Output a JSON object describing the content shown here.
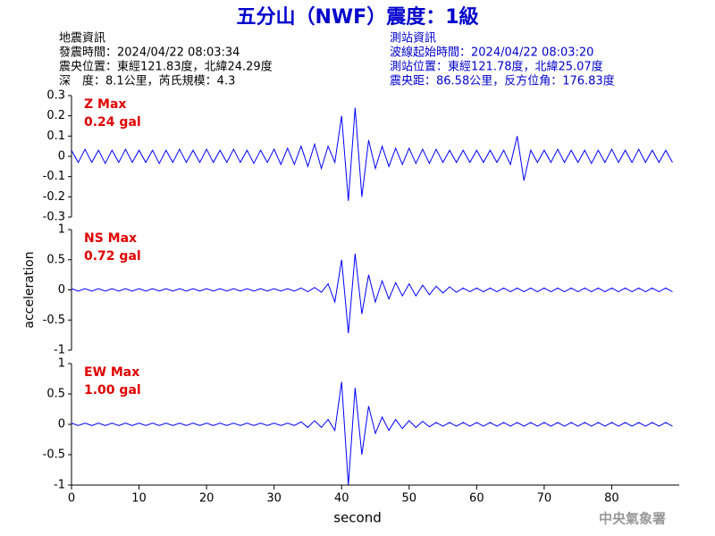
{
  "title": "五分山（NWF）震度：1級",
  "left_info": [
    "地震資訊",
    "發震時間：2024/04/22 08:03:34",
    "震央位置：東經121.83度，北緯24.29度",
    "深　度：8.1公里，芮氏規模：4.3"
  ],
  "right_info": [
    "測站資訊",
    "波線起始時間：2024/04/22 08:03:20",
    "測站位置：東經121.78度，北緯25.07度",
    "震央距：86.58公里，反方位角：176.83度"
  ],
  "footer": "中央氣象署",
  "chart_data": [
    {
      "type": "line",
      "annotation": "Z Max",
      "max_label": "0.24 gal",
      "color": "#0000ff",
      "xlim": [
        0,
        90
      ],
      "ylim": [
        -0.3,
        0.3
      ],
      "yticks": [
        -0.3,
        -0.2,
        -0.1,
        0,
        0.1,
        0.2,
        0.3
      ],
      "x": [
        0,
        1,
        2,
        3,
        4,
        5,
        6,
        7,
        8,
        9,
        10,
        11,
        12,
        13,
        14,
        15,
        16,
        17,
        18,
        19,
        20,
        21,
        22,
        23,
        24,
        25,
        26,
        27,
        28,
        29,
        30,
        31,
        32,
        33,
        34,
        35,
        36,
        37,
        38,
        39,
        40,
        41,
        42,
        43,
        44,
        45,
        46,
        47,
        48,
        49,
        50,
        51,
        52,
        53,
        54,
        55,
        56,
        57,
        58,
        59,
        60,
        61,
        62,
        63,
        64,
        65,
        66,
        67,
        68,
        69,
        70,
        71,
        72,
        73,
        74,
        75,
        76,
        77,
        78,
        79,
        80,
        81,
        82,
        83,
        84,
        85,
        86,
        87,
        88,
        89
      ],
      "values": [
        0.03,
        -0.03,
        0.035,
        -0.03,
        0.03,
        -0.035,
        0.03,
        -0.03,
        0.035,
        -0.03,
        0.03,
        -0.03,
        0.03,
        -0.035,
        0.03,
        -0.03,
        0.035,
        -0.03,
        0.03,
        -0.03,
        0.035,
        -0.03,
        0.03,
        -0.03,
        0.035,
        -0.03,
        0.03,
        -0.035,
        0.03,
        -0.03,
        0.035,
        -0.04,
        0.04,
        -0.04,
        0.05,
        -0.05,
        0.06,
        -0.06,
        0.05,
        -0.03,
        0.2,
        -0.22,
        0.24,
        -0.2,
        0.08,
        -0.06,
        0.05,
        -0.05,
        0.04,
        -0.04,
        0.04,
        -0.035,
        0.035,
        -0.035,
        0.035,
        -0.03,
        0.03,
        -0.03,
        0.03,
        -0.03,
        0.03,
        -0.03,
        0.03,
        -0.03,
        0.03,
        -0.04,
        0.1,
        -0.12,
        0.03,
        -0.03,
        0.03,
        -0.03,
        0.035,
        -0.03,
        0.03,
        -0.03,
        0.03,
        -0.035,
        0.03,
        -0.03,
        0.035,
        -0.03,
        0.03,
        -0.03,
        0.035,
        -0.03,
        0.03,
        -0.03,
        0.03,
        -0.03
      ]
    },
    {
      "type": "line",
      "annotation": "NS Max",
      "max_label": "0.72 gal",
      "color": "#0000ff",
      "ylabel": "acceleration",
      "xlim": [
        0,
        90
      ],
      "ylim": [
        -1,
        1
      ],
      "yticks": [
        -1,
        -0.5,
        0,
        0.5,
        1
      ],
      "x": [
        0,
        1,
        2,
        3,
        4,
        5,
        6,
        7,
        8,
        9,
        10,
        11,
        12,
        13,
        14,
        15,
        16,
        17,
        18,
        19,
        20,
        21,
        22,
        23,
        24,
        25,
        26,
        27,
        28,
        29,
        30,
        31,
        32,
        33,
        34,
        35,
        36,
        37,
        38,
        39,
        40,
        41,
        42,
        43,
        44,
        45,
        46,
        47,
        48,
        49,
        50,
        51,
        52,
        53,
        54,
        55,
        56,
        57,
        58,
        59,
        60,
        61,
        62,
        63,
        64,
        65,
        66,
        67,
        68,
        69,
        70,
        71,
        72,
        73,
        74,
        75,
        76,
        77,
        78,
        79,
        80,
        81,
        82,
        83,
        84,
        85,
        86,
        87,
        88,
        89
      ],
      "values": [
        0.02,
        -0.02,
        0.02,
        -0.02,
        0.02,
        -0.02,
        0.02,
        -0.02,
        0.02,
        -0.02,
        0.02,
        -0.02,
        0.02,
        -0.02,
        0.02,
        -0.02,
        0.02,
        -0.02,
        0.02,
        -0.02,
        0.02,
        -0.02,
        0.02,
        -0.02,
        0.02,
        -0.02,
        0.02,
        -0.02,
        0.02,
        -0.02,
        0.02,
        -0.02,
        0.02,
        -0.02,
        0.03,
        -0.03,
        0.04,
        -0.04,
        0.1,
        -0.2,
        0.5,
        -0.72,
        0.6,
        -0.4,
        0.25,
        -0.2,
        0.15,
        -0.15,
        0.12,
        -0.1,
        0.1,
        -0.1,
        0.08,
        -0.08,
        0.06,
        -0.05,
        0.05,
        -0.04,
        0.03,
        -0.03,
        0.03,
        -0.03,
        0.03,
        -0.03,
        0.03,
        -0.03,
        0.03,
        -0.03,
        0.03,
        -0.03,
        0.03,
        -0.03,
        0.03,
        -0.03,
        0.03,
        -0.03,
        0.03,
        -0.03,
        0.03,
        -0.03,
        0.03,
        -0.03,
        0.03,
        -0.03,
        0.03,
        -0.03,
        0.03,
        -0.03,
        0.03,
        -0.03
      ]
    },
    {
      "type": "line",
      "annotation": "EW Max",
      "max_label": "1.00 gal",
      "color": "#0000ff",
      "xlabel": "second",
      "xlim": [
        0,
        90
      ],
      "ylim": [
        -1,
        1
      ],
      "yticks": [
        -1,
        -0.5,
        0,
        0.5,
        1
      ],
      "xticks": [
        0,
        10,
        20,
        30,
        40,
        50,
        60,
        70,
        80
      ],
      "x": [
        0,
        1,
        2,
        3,
        4,
        5,
        6,
        7,
        8,
        9,
        10,
        11,
        12,
        13,
        14,
        15,
        16,
        17,
        18,
        19,
        20,
        21,
        22,
        23,
        24,
        25,
        26,
        27,
        28,
        29,
        30,
        31,
        32,
        33,
        34,
        35,
        36,
        37,
        38,
        39,
        40,
        41,
        42,
        43,
        44,
        45,
        46,
        47,
        48,
        49,
        50,
        51,
        52,
        53,
        54,
        55,
        56,
        57,
        58,
        59,
        60,
        61,
        62,
        63,
        64,
        65,
        66,
        67,
        68,
        69,
        70,
        71,
        72,
        73,
        74,
        75,
        76,
        77,
        78,
        79,
        80,
        81,
        82,
        83,
        84,
        85,
        86,
        87,
        88,
        89
      ],
      "values": [
        0.02,
        -0.02,
        0.02,
        -0.02,
        0.02,
        -0.02,
        0.02,
        -0.02,
        0.02,
        -0.02,
        0.02,
        -0.02,
        0.02,
        -0.02,
        0.02,
        -0.02,
        0.02,
        -0.02,
        0.02,
        -0.02,
        0.02,
        -0.02,
        0.02,
        -0.02,
        0.02,
        -0.02,
        0.02,
        -0.02,
        0.02,
        -0.02,
        0.02,
        -0.02,
        0.02,
        -0.02,
        0.04,
        -0.05,
        0.06,
        -0.05,
        0.08,
        -0.1,
        0.7,
        -1.0,
        0.6,
        -0.5,
        0.3,
        -0.15,
        0.12,
        -0.1,
        0.08,
        -0.07,
        0.06,
        -0.05,
        0.05,
        -0.04,
        0.03,
        -0.03,
        0.03,
        -0.03,
        0.03,
        -0.03,
        0.03,
        -0.03,
        0.03,
        -0.03,
        0.03,
        -0.03,
        0.03,
        -0.03,
        0.03,
        -0.03,
        0.03,
        -0.03,
        0.03,
        -0.03,
        0.03,
        -0.03,
        0.03,
        -0.03,
        0.03,
        -0.03,
        0.03,
        -0.03,
        0.03,
        -0.03,
        0.03,
        -0.03,
        0.03,
        -0.03,
        0.03,
        -0.03
      ]
    }
  ]
}
